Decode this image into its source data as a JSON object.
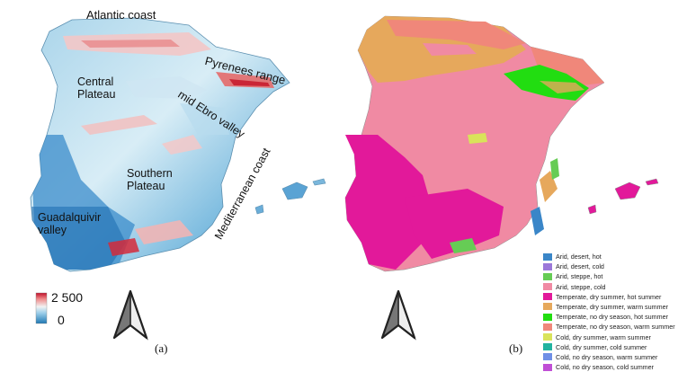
{
  "panel_a": {
    "label": "(a)",
    "place_labels": {
      "atlantic_coast": "Atlantic coast",
      "pyrenees_range": "Pyrenees range",
      "central_plateau_1": "Central",
      "central_plateau_2": "Plateau",
      "mid_ebro_valley": "mid Ebro valley",
      "southern_plateau_1": "Southern",
      "southern_plateau_2": "Plateau",
      "mediterranean_coast": "Mediterranean coast",
      "guadalquivir_1": "Guadalquivir",
      "guadalquivir_2": "valley"
    },
    "elevation_scale": {
      "max_label": "2 500",
      "min_label": "0",
      "colors": [
        "#1f78b4",
        "#6baed6",
        "#d6ecf5",
        "#f7d5d5",
        "#e34a4a",
        "#b2182b"
      ]
    },
    "north_arrow": "north-arrow-icon"
  },
  "panel_b": {
    "label": "(b)",
    "legend": [
      {
        "label": "Arid, desert, hot",
        "color": "#3a86c8"
      },
      {
        "label": "Arid, desert, cold",
        "color": "#9b78d9"
      },
      {
        "label": "Arid, steppe, hot",
        "color": "#66cc55"
      },
      {
        "label": "Arid, steppe, cold",
        "color": "#f08aa3"
      },
      {
        "label": "Temperate, dry summer, hot summer",
        "color": "#e2199a"
      },
      {
        "label": "Temperate, dry summer, warm summer",
        "color": "#e6a85c"
      },
      {
        "label": "Temperate, no dry season, hot summer",
        "color": "#22dd11"
      },
      {
        "label": "Temperate, no dry season, warm summer",
        "color": "#f0877a"
      },
      {
        "label": "Cold, dry summer, warm summer",
        "color": "#d9e35a"
      },
      {
        "label": "Cold, dry summer, cold summer",
        "color": "#22b3a0"
      },
      {
        "label": "Cold, no dry season, warm summer",
        "color": "#6f8fe6"
      },
      {
        "label": "Cold, no dry season, cold summer",
        "color": "#c04fd6"
      }
    ],
    "north_arrow": "north-arrow-icon"
  }
}
